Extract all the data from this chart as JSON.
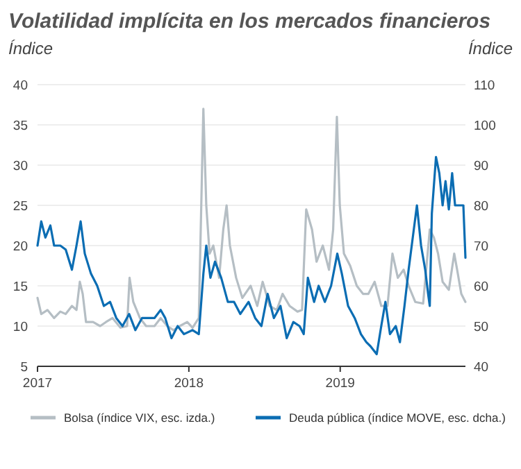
{
  "chart_data": {
    "type": "line",
    "title": "Volatilidad implícita en los mercados financieros",
    "ylabel": "Índice",
    "y2label": "Índice",
    "xlim": [
      "2017-01-01",
      "2019-10-30"
    ],
    "xticks": [
      "2017",
      "2018",
      "2019"
    ],
    "ylim": [
      5,
      40
    ],
    "yticks": [
      5,
      10,
      15,
      20,
      25,
      30,
      35,
      40
    ],
    "y2lim": [
      40,
      110
    ],
    "y2ticks": [
      40,
      50,
      60,
      70,
      80,
      90,
      100,
      110
    ],
    "grid": "y",
    "legend": "bottom",
    "series": [
      {
        "name": "Bolsa (índice VIX, esc. izda.)",
        "color": "#b5bec4",
        "x": [
          "2017-01-01",
          "2017-01-10",
          "2017-01-25",
          "2017-02-10",
          "2017-02-25",
          "2017-03-10",
          "2017-03-25",
          "2017-04-05",
          "2017-04-13",
          "2017-04-20",
          "2017-04-28",
          "2017-05-15",
          "2017-06-01",
          "2017-06-15",
          "2017-07-01",
          "2017-07-20",
          "2017-08-05",
          "2017-08-11",
          "2017-08-20",
          "2017-09-05",
          "2017-09-20",
          "2017-10-10",
          "2017-10-25",
          "2017-11-10",
          "2017-11-25",
          "2017-12-10",
          "2017-12-28",
          "2018-01-10",
          "2018-01-25",
          "2018-02-05",
          "2018-02-12",
          "2018-02-20",
          "2018-03-01",
          "2018-03-15",
          "2018-03-25",
          "2018-04-02",
          "2018-04-10",
          "2018-04-25",
          "2018-05-10",
          "2018-05-30",
          "2018-06-15",
          "2018-06-28",
          "2018-07-15",
          "2018-08-01",
          "2018-08-15",
          "2018-09-01",
          "2018-09-20",
          "2018-10-01",
          "2018-10-11",
          "2018-10-25",
          "2018-11-05",
          "2018-11-20",
          "2018-12-05",
          "2018-12-15",
          "2018-12-24",
          "2018-12-31",
          "2019-01-10",
          "2019-01-25",
          "2019-02-10",
          "2019-02-25",
          "2019-03-10",
          "2019-03-25",
          "2019-04-10",
          "2019-04-25",
          "2019-05-07",
          "2019-05-20",
          "2019-06-03",
          "2019-06-15",
          "2019-07-01",
          "2019-07-20",
          "2019-08-05",
          "2019-08-15",
          "2019-08-25",
          "2019-09-05",
          "2019-09-20",
          "2019-10-03",
          "2019-10-10",
          "2019-10-20",
          "2019-10-30"
        ],
        "values": [
          13.5,
          11.5,
          12,
          11,
          11.8,
          11.5,
          12.5,
          12,
          15.5,
          14,
          10.5,
          10.5,
          10,
          10.5,
          11,
          9.8,
          10,
          16,
          13,
          11,
          10,
          10,
          11,
          10,
          9.5,
          10,
          10.5,
          9.8,
          11,
          37,
          25,
          19,
          20,
          16,
          22,
          25,
          20,
          16,
          13.5,
          15,
          12.5,
          15.5,
          12.5,
          12,
          14,
          12.5,
          11.8,
          12,
          24.5,
          22,
          18,
          20,
          17,
          22,
          36,
          25,
          19,
          17.5,
          15,
          14,
          14,
          15.5,
          12.5,
          12.5,
          19,
          16,
          17,
          15,
          13,
          12.8,
          22,
          21,
          19,
          15.5,
          14.5,
          19,
          17,
          14,
          13
        ]
      },
      {
        "name": "Deuda pública (índice MOVE, esc. dcha.)",
        "color": "#0b6db3",
        "axis": "y2",
        "x": [
          "2017-01-01",
          "2017-01-10",
          "2017-01-20",
          "2017-02-01",
          "2017-02-10",
          "2017-02-25",
          "2017-03-10",
          "2017-03-25",
          "2017-04-05",
          "2017-04-15",
          "2017-04-25",
          "2017-05-10",
          "2017-05-25",
          "2017-06-10",
          "2017-06-25",
          "2017-07-10",
          "2017-07-25",
          "2017-08-10",
          "2017-08-25",
          "2017-09-10",
          "2017-09-25",
          "2017-10-10",
          "2017-10-25",
          "2017-11-05",
          "2017-11-20",
          "2017-12-05",
          "2017-12-20",
          "2018-01-10",
          "2018-01-25",
          "2018-02-05",
          "2018-02-12",
          "2018-02-22",
          "2018-03-05",
          "2018-03-20",
          "2018-04-05",
          "2018-04-20",
          "2018-05-05",
          "2018-05-25",
          "2018-06-10",
          "2018-06-25",
          "2018-07-10",
          "2018-07-25",
          "2018-08-10",
          "2018-08-25",
          "2018-09-10",
          "2018-09-25",
          "2018-10-05",
          "2018-10-15",
          "2018-10-30",
          "2018-11-10",
          "2018-11-25",
          "2018-12-10",
          "2018-12-25",
          "2019-01-05",
          "2019-01-20",
          "2019-02-05",
          "2019-02-20",
          "2019-03-05",
          "2019-03-15",
          "2019-03-30",
          "2019-04-10",
          "2019-04-20",
          "2019-05-01",
          "2019-05-15",
          "2019-05-25",
          "2019-06-05",
          "2019-06-15",
          "2019-06-25",
          "2019-07-05",
          "2019-07-15",
          "2019-07-25",
          "2019-08-01",
          "2019-08-05",
          "2019-08-10",
          "2019-08-20",
          "2019-08-28",
          "2019-09-05",
          "2019-09-12",
          "2019-09-20",
          "2019-09-28",
          "2019-10-05",
          "2019-10-15",
          "2019-10-25",
          "2019-10-30"
        ],
        "values": [
          70,
          76,
          72,
          75,
          70,
          70,
          69,
          64,
          70,
          76,
          68,
          63,
          60,
          55,
          56,
          52,
          50,
          53,
          49,
          52,
          52,
          52,
          54,
          52,
          47,
          50,
          48,
          49,
          48,
          63,
          70,
          62,
          66,
          62,
          56,
          56,
          53,
          56,
          52,
          50,
          58,
          52,
          55,
          47,
          51,
          50,
          48,
          62,
          56,
          60,
          56,
          60,
          68,
          63,
          55,
          52,
          48,
          46,
          45,
          43,
          50,
          56,
          48,
          50,
          46,
          55,
          64,
          72,
          80,
          70,
          64,
          58,
          55,
          78,
          92,
          88,
          80,
          86,
          79,
          88,
          80,
          80,
          80,
          67
        ]
      }
    ]
  }
}
